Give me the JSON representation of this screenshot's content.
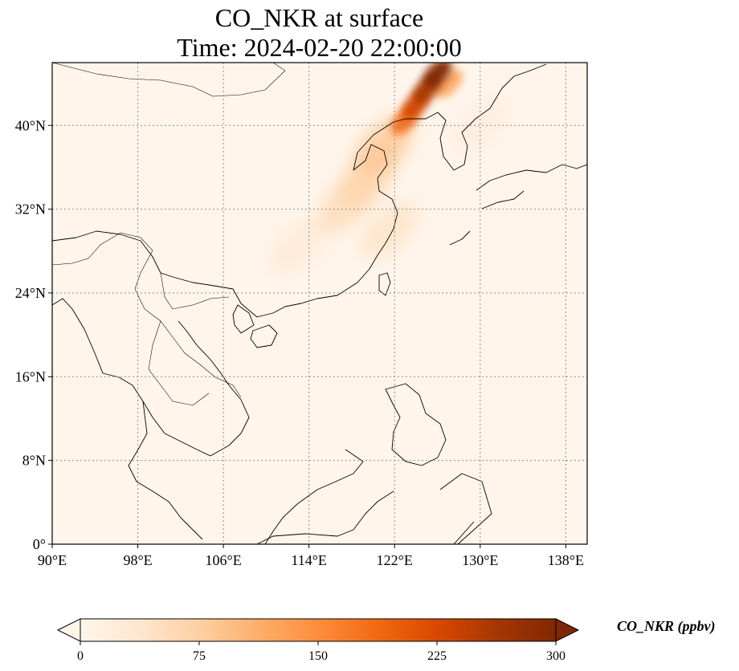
{
  "title": {
    "line1": "CO_NKR at surface",
    "line2": "Time: 2024-02-20 22:00:00"
  },
  "map": {
    "projection": "PlateCarree",
    "lon_range": [
      90,
      140
    ],
    "lat_range": [
      0,
      46
    ],
    "gridlines": "dotted grey",
    "background_color": "#fff5eb",
    "x_ticks": [
      {
        "lon": 90,
        "label": "90°E"
      },
      {
        "lon": 98,
        "label": "98°E"
      },
      {
        "lon": 106,
        "label": "106°E"
      },
      {
        "lon": 114,
        "label": "114°E"
      },
      {
        "lon": 122,
        "label": "122°E"
      },
      {
        "lon": 130,
        "label": "130°E"
      },
      {
        "lon": 138,
        "label": "138°E"
      }
    ],
    "y_ticks": [
      {
        "lat": 0,
        "label": "0°"
      },
      {
        "lat": 8,
        "label": "8°N"
      },
      {
        "lat": 16,
        "label": "16°N"
      },
      {
        "lat": 24,
        "label": "24°N"
      },
      {
        "lat": 32,
        "label": "32°N"
      },
      {
        "lat": 40,
        "label": "40°N"
      }
    ],
    "plume": [
      {
        "lon": 126.0,
        "lat": 45.0,
        "value": 300
      },
      {
        "lon": 125.0,
        "lat": 43.5,
        "value": 260
      },
      {
        "lon": 124.0,
        "lat": 42.0,
        "value": 230
      },
      {
        "lon": 123.0,
        "lat": 40.5,
        "value": 180
      },
      {
        "lon": 127.0,
        "lat": 44.0,
        "value": 120
      },
      {
        "lon": 121.0,
        "lat": 38.0,
        "value": 90
      },
      {
        "lon": 119.5,
        "lat": 35.0,
        "value": 70
      },
      {
        "lon": 117.5,
        "lat": 32.5,
        "value": 60
      },
      {
        "lon": 121.5,
        "lat": 30.0,
        "value": 45
      },
      {
        "lon": 113.0,
        "lat": 28.5,
        "value": 30
      },
      {
        "lon": 130.0,
        "lat": 40.0,
        "value": 20
      }
    ]
  },
  "colorbar": {
    "label": "CO_NKR (ppbv)",
    "min": 0,
    "max": 300,
    "extend": "both",
    "colormap": "OrRd",
    "stops": [
      "#fff5eb",
      "#fee6ce",
      "#fdd0a2",
      "#fdae6b",
      "#fd8d3c",
      "#f16913",
      "#d94801",
      "#a63603",
      "#7f2704"
    ],
    "ticks": [
      {
        "value": 0,
        "label": "0"
      },
      {
        "value": 75,
        "label": "75"
      },
      {
        "value": 150,
        "label": "150"
      },
      {
        "value": 225,
        "label": "225"
      },
      {
        "value": 300,
        "label": "300"
      }
    ]
  }
}
